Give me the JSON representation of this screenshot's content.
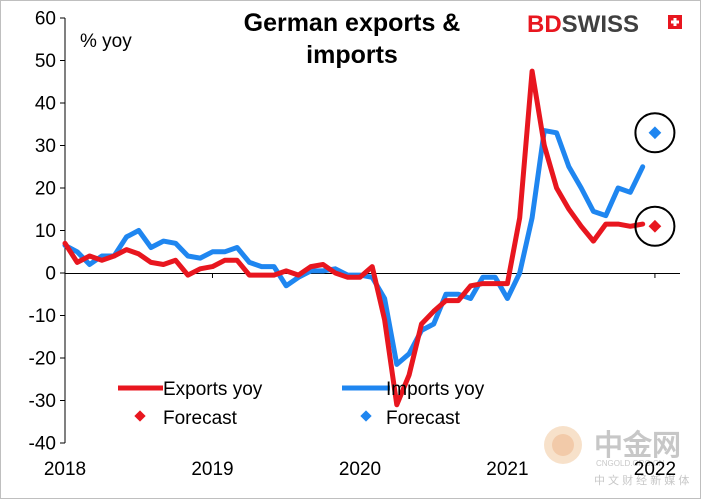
{
  "chart_data": {
    "type": "line",
    "title_lines": [
      "German exports &",
      "imports"
    ],
    "unit_label": "% yoy",
    "ylim": [
      -40,
      60
    ],
    "y_ticks": [
      60,
      50,
      40,
      30,
      20,
      10,
      0,
      -10,
      -20,
      -30,
      -40
    ],
    "xlim": [
      2018.0,
      2022.17
    ],
    "x_ticks": [
      {
        "value": 2018,
        "label": "2018"
      },
      {
        "value": 2019,
        "label": "2019"
      },
      {
        "value": 2020,
        "label": "2020"
      },
      {
        "value": 2021,
        "label": "2021"
      },
      {
        "value": 2022,
        "label": "2022"
      }
    ],
    "grid": false,
    "legend_position": "bottom-center",
    "series": [
      {
        "name": "Exports yoy",
        "color": "#e8161f",
        "x": [
          2018.0,
          2018.083,
          2018.167,
          2018.25,
          2018.333,
          2018.417,
          2018.5,
          2018.583,
          2018.667,
          2018.75,
          2018.833,
          2018.917,
          2019.0,
          2019.083,
          2019.167,
          2019.25,
          2019.333,
          2019.417,
          2019.5,
          2019.583,
          2019.667,
          2019.75,
          2019.833,
          2019.917,
          2020.0,
          2020.083,
          2020.167,
          2020.25,
          2020.333,
          2020.417,
          2020.5,
          2020.583,
          2020.667,
          2020.75,
          2020.833,
          2020.917,
          2021.0,
          2021.083,
          2021.167,
          2021.25,
          2021.333,
          2021.417,
          2021.5,
          2021.583,
          2021.667,
          2021.75,
          2021.833,
          2021.917
        ],
        "values": [
          7,
          2.5,
          4,
          3,
          4,
          5.5,
          4.5,
          2.5,
          2,
          3,
          -0.5,
          1,
          1.5,
          3,
          3,
          -0.5,
          -0.5,
          -0.5,
          0.5,
          -0.5,
          1.5,
          2,
          0,
          -1,
          -1,
          1.5,
          -11,
          -31,
          -24,
          -12,
          -9,
          -6.5,
          -6.5,
          -3,
          -2.5,
          -2.5,
          -2.5,
          13,
          47.5,
          30,
          20,
          15,
          11,
          7.5,
          11.5,
          11.5,
          11,
          11.5
        ]
      },
      {
        "name": "Imports yoy",
        "color": "#1f86f0",
        "x": [
          2018.0,
          2018.083,
          2018.167,
          2018.25,
          2018.333,
          2018.417,
          2018.5,
          2018.583,
          2018.667,
          2018.75,
          2018.833,
          2018.917,
          2019.0,
          2019.083,
          2019.167,
          2019.25,
          2019.333,
          2019.417,
          2019.5,
          2019.583,
          2019.667,
          2019.75,
          2019.833,
          2019.917,
          2020.0,
          2020.083,
          2020.167,
          2020.25,
          2020.333,
          2020.417,
          2020.5,
          2020.583,
          2020.667,
          2020.75,
          2020.833,
          2020.917,
          2021.0,
          2021.083,
          2021.167,
          2021.25,
          2021.333,
          2021.417,
          2021.5,
          2021.583,
          2021.667,
          2021.75,
          2021.833,
          2021.917
        ],
        "values": [
          6.5,
          5,
          2,
          4,
          4,
          8.5,
          10,
          6,
          7.5,
          7,
          4,
          3.5,
          5,
          5,
          6,
          2.5,
          1.5,
          1.5,
          -3,
          -1,
          0.5,
          0.5,
          1,
          -0.5,
          -0.5,
          -1,
          -6,
          -21.5,
          -19,
          -13.5,
          -12,
          -5,
          -5,
          -6,
          -1,
          -1,
          -6,
          0,
          13,
          33.5,
          33,
          25,
          20,
          14.5,
          13.5,
          20,
          19,
          25
        ]
      }
    ],
    "forecast": [
      {
        "name": "Forecast",
        "color": "#e8161f",
        "x": 2022.0,
        "value": 11
      },
      {
        "name": "Forecast",
        "color": "#1f86f0",
        "x": 2022.0,
        "value": 33
      }
    ],
    "annotations": [
      "circle around red forecast point",
      "circle around blue forecast point"
    ]
  },
  "brand": {
    "text_a": "BD",
    "text_b": "SWISS",
    "color_a": "#e8161f",
    "color_b": "#404040"
  },
  "watermark": {
    "text": "中金网",
    "subtext_top": "CNGOLD.ORG.CN",
    "subtext_bottom": "中 文 财 经 新 媒 体"
  }
}
